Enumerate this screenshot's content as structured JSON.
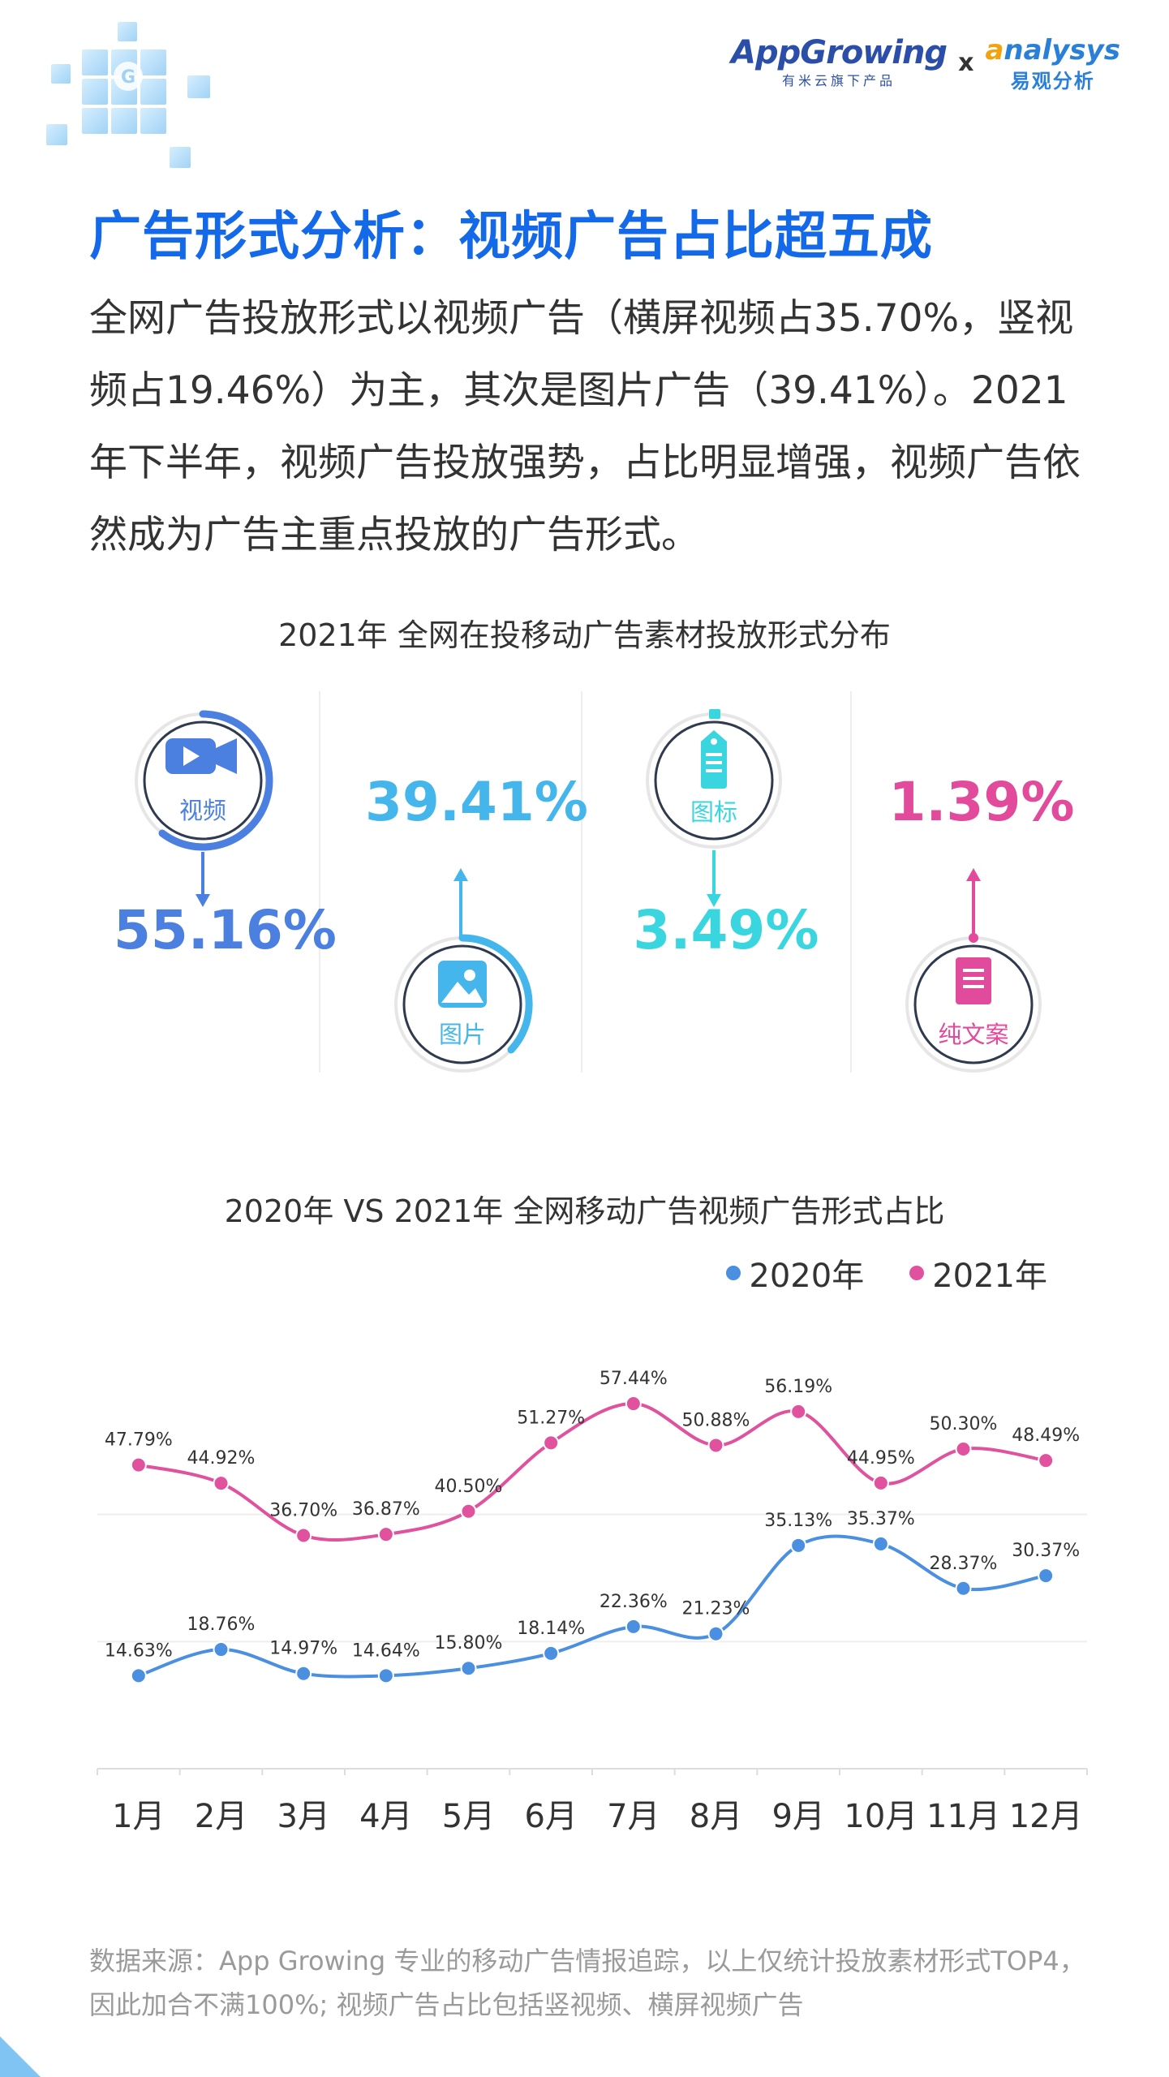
{
  "brand": {
    "appgrowing": "AppGrowing",
    "appgrowing_sub": "有米云旗下产品",
    "separator": "x",
    "analysys_prefix": "a",
    "analysys_rest": "nalysys",
    "analysys_sub": "易观分析"
  },
  "page_title": "广告形式分析：视频广告占比超五成",
  "intro": "全网广告投放形式以视频广告（横屏视频占35.70%，竖视频占19.46%）为主，其次是图片广告（39.41%）。2021年下半年，视频广告投放强势，占比明显增强，视频广告依然成为广告主重点投放的广告形式。",
  "infographic": {
    "title": "2021年 全网在投移动广告素材投放形式分布",
    "items": [
      {
        "label": "视频",
        "percent_text": "55.16%",
        "value": 55.16,
        "color": "#4b7fe0",
        "icon": "video-camera-icon"
      },
      {
        "label": "图片",
        "percent_text": "39.41%",
        "value": 39.41,
        "color": "#45b6ec",
        "icon": "image-icon"
      },
      {
        "label": "图标",
        "percent_text": "3.49%",
        "value": 3.49,
        "color": "#3ad6e0",
        "icon": "tag-icon"
      },
      {
        "label": "纯文案",
        "percent_text": "1.39%",
        "value": 1.39,
        "color": "#e24a9b",
        "icon": "document-icon"
      }
    ]
  },
  "chart_data": {
    "type": "line",
    "title": "2020年 VS 2021年 全网移动广告视频广告形式占比",
    "categories": [
      "1月",
      "2月",
      "3月",
      "4月",
      "5月",
      "6月",
      "7月",
      "8月",
      "9月",
      "10月",
      "11月",
      "12月"
    ],
    "series": [
      {
        "name": "2020年",
        "color": "#4a8fe0",
        "values": [
          14.63,
          18.76,
          14.97,
          14.64,
          15.8,
          18.14,
          22.36,
          21.23,
          35.13,
          35.37,
          28.37,
          30.37
        ],
        "labels": [
          "14.63%",
          "18.76%",
          "14.97%",
          "14.64%",
          "15.80%",
          "18.14%",
          "22.36%",
          "21.23%",
          "35.13%",
          "35.37%",
          "28.37%",
          "30.37%"
        ]
      },
      {
        "name": "2021年",
        "color": "#e0519e",
        "values": [
          47.79,
          44.92,
          36.7,
          36.87,
          40.5,
          51.27,
          57.44,
          50.88,
          56.19,
          44.95,
          50.3,
          48.49
        ],
        "labels": [
          "47.79%",
          "44.92%",
          "36.70%",
          "36.87%",
          "40.50%",
          "51.27%",
          "57.44%",
          "50.88%",
          "56.19%",
          "44.95%",
          "50.30%",
          "48.49%"
        ]
      }
    ],
    "ylim": [
      0,
      60
    ],
    "grid": true,
    "legend_position": "top-right",
    "xlabel": "",
    "ylabel": ""
  },
  "source": "数据来源：App Growing 专业的移动广告情报追踪，以上仅统计投放素材形式TOP4，因此加合不满100%; 视频广告占比包括竖视频、横屏视频广告"
}
